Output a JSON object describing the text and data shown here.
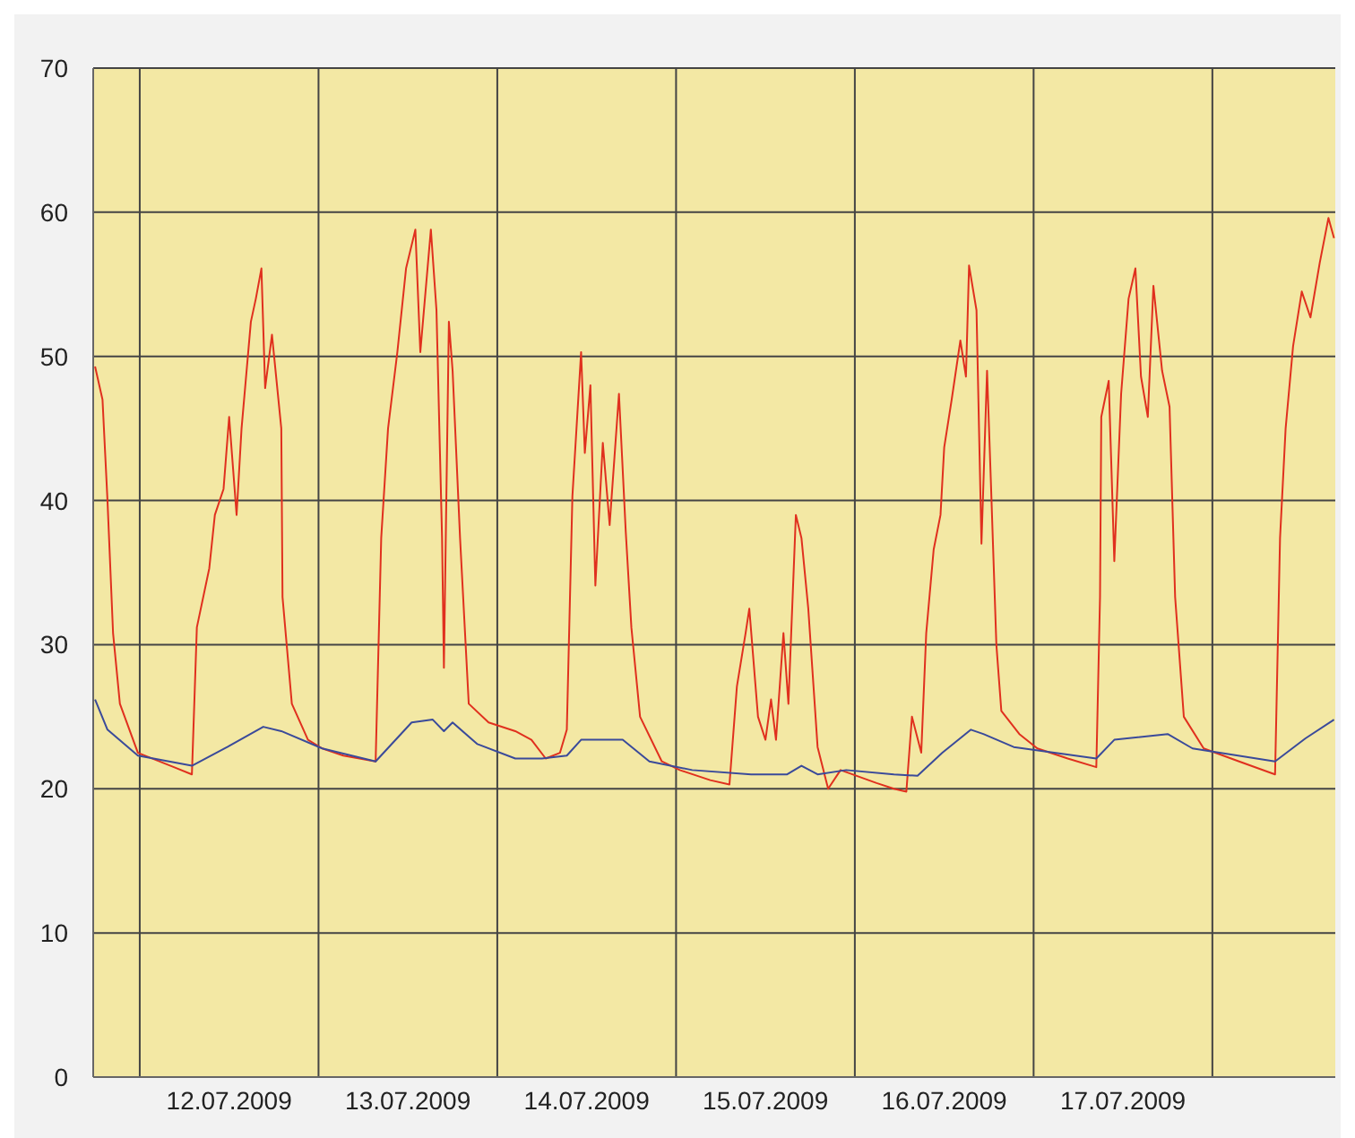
{
  "chart_data": {
    "type": "line",
    "xlim": [
      "2009-07-11T17:45",
      "2009-07-18T16:30"
    ],
    "ylim": [
      0,
      70
    ],
    "yticks": [
      0,
      10,
      20,
      30,
      40,
      50,
      60,
      70
    ],
    "xticks": [
      {
        "value": "2009-07-12T00:00",
        "label": null
      },
      {
        "value": "2009-07-12T12:00",
        "label": "12.07.2009"
      },
      {
        "value": "2009-07-13T00:00",
        "label": null
      },
      {
        "value": "2009-07-13T12:00",
        "label": "13.07.2009"
      },
      {
        "value": "2009-07-14T00:00",
        "label": null
      },
      {
        "value": "2009-07-14T12:00",
        "label": "14.07.2009"
      },
      {
        "value": "2009-07-15T00:00",
        "label": null
      },
      {
        "value": "2009-07-15T12:00",
        "label": "15.07.2009"
      },
      {
        "value": "2009-07-16T00:00",
        "label": null
      },
      {
        "value": "2009-07-16T12:00",
        "label": "16.07.2009"
      },
      {
        "value": "2009-07-17T00:00",
        "label": null
      },
      {
        "value": "2009-07-17T12:00",
        "label": "17.07.2009"
      },
      {
        "value": "2009-07-18T00:00",
        "label": null
      }
    ],
    "grid": true,
    "marker": "none",
    "series": [
      {
        "color": "#e0301e",
        "x": [
          "2009-07-11T18:00",
          "2009-07-11T19:00",
          "2009-07-11T19:40",
          "2009-07-11T20:25",
          "2009-07-11T21:20",
          "2009-07-11T23:45",
          "2009-07-12T04:35",
          "2009-07-12T07:00",
          "2009-07-12T07:40",
          "2009-07-12T09:20",
          "2009-07-12T10:05",
          "2009-07-12T11:15",
          "2009-07-12T12:00",
          "2009-07-12T13:00",
          "2009-07-12T13:40",
          "2009-07-12T14:55",
          "2009-07-12T15:35",
          "2009-07-12T16:20",
          "2009-07-12T16:50",
          "2009-07-12T17:45",
          "2009-07-12T19:00",
          "2009-07-12T19:10",
          "2009-07-12T20:25",
          "2009-07-12T22:35",
          "2009-07-13T00:30",
          "2009-07-13T03:20",
          "2009-07-13T07:40",
          "2009-07-13T08:25",
          "2009-07-13T09:20",
          "2009-07-13T10:35",
          "2009-07-13T11:45",
          "2009-07-13T13:00",
          "2009-07-13T13:40",
          "2009-07-13T15:05",
          "2009-07-13T15:50",
          "2009-07-13T16:35",
          "2009-07-13T16:50",
          "2009-07-13T17:30",
          "2009-07-13T18:00",
          "2009-07-13T19:00",
          "2009-07-13T20:10",
          "2009-07-13T22:50",
          "2009-07-14T02:25",
          "2009-07-14T04:35",
          "2009-07-14T06:30",
          "2009-07-14T08:25",
          "2009-07-14T09:20",
          "2009-07-14T10:05",
          "2009-07-14T11:15",
          "2009-07-14T11:45",
          "2009-07-14T12:30",
          "2009-07-14T13:10",
          "2009-07-14T14:10",
          "2009-07-14T15:05",
          "2009-07-14T16:20",
          "2009-07-14T17:15",
          "2009-07-14T18:00",
          "2009-07-14T19:10",
          "2009-07-14T22:05",
          "2009-07-15T00:30",
          "2009-07-15T04:35",
          "2009-07-15T07:10",
          "2009-07-15T08:10",
          "2009-07-15T09:20",
          "2009-07-15T09:50",
          "2009-07-15T11:00",
          "2009-07-15T12:00",
          "2009-07-15T12:45",
          "2009-07-15T13:25",
          "2009-07-15T14:25",
          "2009-07-15T15:05",
          "2009-07-15T16:05",
          "2009-07-15T16:50",
          "2009-07-15T17:45",
          "2009-07-15T19:00",
          "2009-07-15T20:25",
          "2009-07-15T22:05",
          "2009-07-16T02:55",
          "2009-07-16T05:15",
          "2009-07-16T06:55",
          "2009-07-16T07:40",
          "2009-07-16T08:55",
          "2009-07-16T09:35",
          "2009-07-16T10:35",
          "2009-07-16T11:30",
          "2009-07-16T12:00",
          "2009-07-16T13:00",
          "2009-07-16T14:10",
          "2009-07-16T14:55",
          "2009-07-16T15:20",
          "2009-07-16T16:20",
          "2009-07-16T17:00",
          "2009-07-16T17:45",
          "2009-07-16T18:15",
          "2009-07-16T19:00",
          "2009-07-16T19:40",
          "2009-07-16T22:05",
          "2009-07-17T00:30",
          "2009-07-17T04:35",
          "2009-07-17T08:25",
          "2009-07-17T08:55",
          "2009-07-17T09:05",
          "2009-07-17T10:05",
          "2009-07-17T10:50",
          "2009-07-17T11:45",
          "2009-07-17T12:45",
          "2009-07-17T13:40",
          "2009-07-17T14:25",
          "2009-07-17T15:20",
          "2009-07-17T16:05",
          "2009-07-17T17:15",
          "2009-07-17T18:15",
          "2009-07-17T19:00",
          "2009-07-17T20:10",
          "2009-07-17T22:50",
          "2009-07-18T03:35",
          "2009-07-18T08:25",
          "2009-07-18T09:05",
          "2009-07-18T09:50",
          "2009-07-18T10:50",
          "2009-07-18T12:00",
          "2009-07-18T13:10",
          "2009-07-18T14:25",
          "2009-07-18T15:35",
          "2009-07-18T16:20"
        ],
        "values": [
          49.3,
          47,
          40,
          30.8,
          25.9,
          22.5,
          21.5,
          21,
          31.2,
          35.3,
          39,
          40.8,
          45.8,
          39,
          45,
          52.4,
          54,
          56.1,
          47.8,
          51.5,
          45,
          33.3,
          25.9,
          23.4,
          22.8,
          22.3,
          21.9,
          37.4,
          45,
          50.3,
          56.1,
          58.8,
          50.3,
          58.8,
          53.2,
          37.4,
          28.4,
          52.4,
          49,
          37.4,
          25.9,
          24.6,
          24,
          23.4,
          22.1,
          22.5,
          24.1,
          40.3,
          50.3,
          43.3,
          48,
          34.1,
          44,
          38.3,
          47.4,
          37.8,
          31.2,
          25,
          21.9,
          21.3,
          20.6,
          20.3,
          27.1,
          30.8,
          32.5,
          25,
          23.4,
          26.2,
          23.4,
          30.8,
          25.9,
          39,
          37.4,
          32.5,
          22.9,
          20,
          21.3,
          20.4,
          20,
          19.8,
          25,
          22.5,
          30.8,
          36.6,
          39,
          43.7,
          47,
          51.1,
          48.6,
          56.3,
          53.2,
          37,
          49,
          41.5,
          30,
          25.4,
          23.8,
          22.8,
          22.1,
          21.5,
          33.3,
          45.8,
          48.3,
          35.8,
          47.4,
          54,
          56.1,
          48.6,
          45.8,
          54.9,
          49,
          46.5,
          33.3,
          25,
          22.8,
          21.9,
          21,
          37.4,
          45,
          50.7,
          54.5,
          52.7,
          56.5,
          59.6,
          58.2
        ]
      },
      {
        "color": "#3a4a9a",
        "x": [
          "2009-07-11T18:00",
          "2009-07-11T19:40",
          "2009-07-11T23:45",
          "2009-07-12T07:00",
          "2009-07-12T11:45",
          "2009-07-12T16:35",
          "2009-07-12T19:00",
          "2009-07-13T00:30",
          "2009-07-13T07:40",
          "2009-07-13T12:30",
          "2009-07-13T15:20",
          "2009-07-13T16:50",
          "2009-07-13T18:00",
          "2009-07-13T21:20",
          "2009-07-14T02:25",
          "2009-07-14T06:00",
          "2009-07-14T09:20",
          "2009-07-14T11:15",
          "2009-07-14T16:50",
          "2009-07-14T20:25",
          "2009-07-15T02:10",
          "2009-07-15T10:05",
          "2009-07-15T14:55",
          "2009-07-15T16:50",
          "2009-07-15T19:00",
          "2009-07-15T22:50",
          "2009-07-16T05:15",
          "2009-07-16T08:25",
          "2009-07-16T11:45",
          "2009-07-16T15:35",
          "2009-07-16T17:15",
          "2009-07-16T21:20",
          "2009-07-17T08:25",
          "2009-07-17T10:50",
          "2009-07-17T18:00",
          "2009-07-17T21:20",
          "2009-07-18T08:25",
          "2009-07-18T12:30",
          "2009-07-18T16:20"
        ],
        "values": [
          26.2,
          24.1,
          22.3,
          21.6,
          22.9,
          24.3,
          24,
          22.8,
          21.9,
          24.6,
          24.8,
          24,
          24.6,
          23.1,
          22.1,
          22.1,
          22.3,
          23.4,
          23.4,
          21.9,
          21.3,
          21,
          21,
          21.6,
          21,
          21.3,
          21,
          20.9,
          22.5,
          24.1,
          23.8,
          22.9,
          22.1,
          23.4,
          23.8,
          22.8,
          21.9,
          23.5,
          24.8
        ]
      }
    ]
  }
}
